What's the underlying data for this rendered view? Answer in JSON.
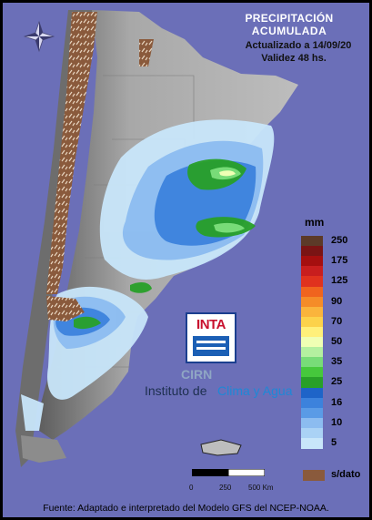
{
  "header": {
    "title_line1": "PRECIPITACIÓN",
    "title_line2": "ACUMULADA",
    "updated": "Actualizado a 14/09/20",
    "validity": "Validez 48 hs."
  },
  "legend": {
    "unit": "mm",
    "entries": [
      {
        "label": "250",
        "color": "#5c3a28"
      },
      {
        "label": "",
        "color": "#7a1414"
      },
      {
        "label": "175",
        "color": "#a50f0f"
      },
      {
        "label": "",
        "color": "#c81e1e"
      },
      {
        "label": "125",
        "color": "#e0321e"
      },
      {
        "label": "",
        "color": "#f0641e"
      },
      {
        "label": "90",
        "color": "#f58c28"
      },
      {
        "label": "",
        "color": "#fab43c"
      },
      {
        "label": "70",
        "color": "#fcd24b"
      },
      {
        "label": "",
        "color": "#fff07a"
      },
      {
        "label": "50",
        "color": "#f0ffb4"
      },
      {
        "label": "",
        "color": "#b4f0a0"
      },
      {
        "label": "35",
        "color": "#78dc78"
      },
      {
        "label": "",
        "color": "#46c83c"
      },
      {
        "label": "25",
        "color": "#28a028"
      },
      {
        "label": "",
        "color": "#1e64c8"
      },
      {
        "label": "16",
        "color": "#3c82dc"
      },
      {
        "label": "",
        "color": "#5a9be6"
      },
      {
        "label": "10",
        "color": "#8cbcf0"
      },
      {
        "label": "",
        "color": "#aad2f5"
      },
      {
        "label": "5",
        "color": "#c8e6fa"
      }
    ],
    "no_data_label": "s/dato",
    "no_data_color": "#8a5a3c"
  },
  "logo": {
    "inta_text": "INTA",
    "cirn_text": "CIRN",
    "institute_prefix": "Instituto de ",
    "institute_highlight": "Clima y Agua"
  },
  "scale_bar": {
    "labels": [
      "0",
      "250",
      "500 Km"
    ]
  },
  "footer": {
    "source": "Fuente: Adaptado e interpretado del Modelo GFS del NCEP-NOAA."
  },
  "colors": {
    "ocean": "#6b6fb8",
    "land": "#9a9a9a",
    "accent_blue": "#1e88d6"
  }
}
